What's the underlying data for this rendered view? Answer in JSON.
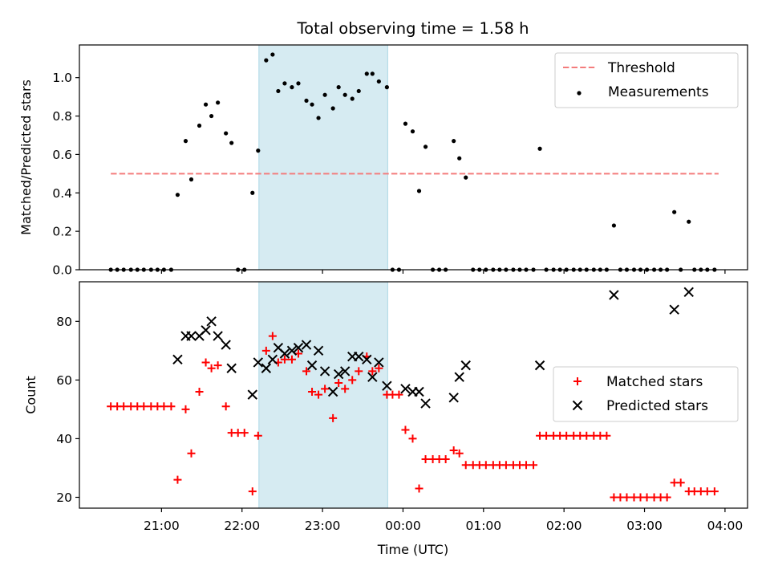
{
  "chart_data": {
    "title": "Total observing time = 1.58 h",
    "xlabel": "Time (UTC)",
    "x_ticks": [
      "21:00",
      "22:00",
      "23:00",
      "00:00",
      "01:00",
      "02:00",
      "03:00",
      "04:00"
    ],
    "x_range_hours": [
      19.98,
      28.28
    ],
    "highlight_interval_hours": [
      22.21,
      23.81
    ],
    "colors": {
      "threshold": "#f47c7c",
      "measurements": "#000000",
      "matched": "#ff0000",
      "predicted": "#000000",
      "highlight": "#add8e6"
    },
    "panels": [
      {
        "type": "scatter",
        "ylabel": "Matched/Predicted stars",
        "ylim": [
          0,
          1.17
        ],
        "y_ticks": [
          "0.0",
          "0.2",
          "0.4",
          "0.6",
          "0.8",
          "1.0"
        ],
        "legend_position": "top-right",
        "series": [
          {
            "name": "Threshold",
            "style": "dashed-line",
            "points": [
              [
                20.37,
                0.5
              ],
              [
                27.92,
                0.5
              ]
            ]
          },
          {
            "name": "Measurements",
            "style": "dot",
            "points": [
              [
                20.37,
                0
              ],
              [
                20.45,
                0
              ],
              [
                20.53,
                0
              ],
              [
                20.62,
                0
              ],
              [
                20.7,
                0
              ],
              [
                20.78,
                0
              ],
              [
                20.87,
                0
              ],
              [
                20.95,
                0
              ],
              [
                21.03,
                0
              ],
              [
                21.12,
                0
              ],
              [
                21.2,
                0.39
              ],
              [
                21.3,
                0.67
              ],
              [
                21.37,
                0.47
              ],
              [
                21.47,
                0.75
              ],
              [
                21.55,
                0.86
              ],
              [
                21.62,
                0.8
              ],
              [
                21.7,
                0.87
              ],
              [
                21.8,
                0.71
              ],
              [
                21.87,
                0.66
              ],
              [
                21.95,
                0
              ],
              [
                22.03,
                0
              ],
              [
                22.13,
                0.4
              ],
              [
                22.2,
                0.62
              ],
              [
                22.3,
                1.09
              ],
              [
                22.38,
                1.12
              ],
              [
                22.45,
                0.93
              ],
              [
                22.53,
                0.97
              ],
              [
                22.62,
                0.95
              ],
              [
                22.7,
                0.97
              ],
              [
                22.8,
                0.88
              ],
              [
                22.87,
                0.86
              ],
              [
                22.95,
                0.79
              ],
              [
                23.03,
                0.91
              ],
              [
                23.13,
                0.84
              ],
              [
                23.2,
                0.95
              ],
              [
                23.28,
                0.91
              ],
              [
                23.37,
                0.89
              ],
              [
                23.45,
                0.93
              ],
              [
                23.55,
                1.02
              ],
              [
                23.62,
                1.02
              ],
              [
                23.7,
                0.98
              ],
              [
                23.8,
                0.95
              ],
              [
                23.87,
                0
              ],
              [
                23.95,
                0
              ],
              [
                24.03,
                0.76
              ],
              [
                24.12,
                0.72
              ],
              [
                24.2,
                0.41
              ],
              [
                24.28,
                0.64
              ],
              [
                24.37,
                0
              ],
              [
                24.45,
                0
              ],
              [
                24.53,
                0
              ],
              [
                24.63,
                0.67
              ],
              [
                24.7,
                0.58
              ],
              [
                24.78,
                0.48
              ],
              [
                24.87,
                0
              ],
              [
                24.95,
                0
              ],
              [
                25.03,
                0
              ],
              [
                25.12,
                0
              ],
              [
                25.2,
                0
              ],
              [
                25.28,
                0
              ],
              [
                25.37,
                0
              ],
              [
                25.45,
                0
              ],
              [
                25.53,
                0
              ],
              [
                25.62,
                0
              ],
              [
                25.7,
                0.63
              ],
              [
                25.78,
                0
              ],
              [
                25.87,
                0
              ],
              [
                25.95,
                0
              ],
              [
                26.03,
                0
              ],
              [
                26.12,
                0
              ],
              [
                26.2,
                0
              ],
              [
                26.28,
                0
              ],
              [
                26.37,
                0
              ],
              [
                26.45,
                0
              ],
              [
                26.53,
                0
              ],
              [
                26.62,
                0.23
              ],
              [
                26.7,
                0
              ],
              [
                26.78,
                0
              ],
              [
                26.87,
                0
              ],
              [
                26.95,
                0
              ],
              [
                27.03,
                0
              ],
              [
                27.12,
                0
              ],
              [
                27.2,
                0
              ],
              [
                27.28,
                0
              ],
              [
                27.37,
                0.3
              ],
              [
                27.45,
                0
              ],
              [
                27.55,
                0.25
              ],
              [
                27.62,
                0
              ],
              [
                27.7,
                0
              ],
              [
                27.78,
                0
              ],
              [
                27.87,
                0
              ]
            ]
          }
        ]
      },
      {
        "type": "scatter",
        "ylabel": "Count",
        "ylim": [
          16.3,
          93.5
        ],
        "y_ticks": [
          "20",
          "40",
          "60",
          "80"
        ],
        "legend_position": "center-right",
        "series": [
          {
            "name": "Matched stars",
            "style": "plus",
            "points": [
              [
                20.37,
                51
              ],
              [
                20.45,
                51
              ],
              [
                20.53,
                51
              ],
              [
                20.62,
                51
              ],
              [
                20.7,
                51
              ],
              [
                20.78,
                51
              ],
              [
                20.87,
                51
              ],
              [
                20.95,
                51
              ],
              [
                21.03,
                51
              ],
              [
                21.12,
                51
              ],
              [
                21.2,
                26
              ],
              [
                21.3,
                50
              ],
              [
                21.37,
                35
              ],
              [
                21.47,
                56
              ],
              [
                21.55,
                66
              ],
              [
                21.62,
                64
              ],
              [
                21.7,
                65
              ],
              [
                21.8,
                51
              ],
              [
                21.87,
                42
              ],
              [
                21.95,
                42
              ],
              [
                22.03,
                42
              ],
              [
                22.13,
                22
              ],
              [
                22.2,
                41
              ],
              [
                22.3,
                70
              ],
              [
                22.38,
                75
              ],
              [
                22.45,
                66
              ],
              [
                22.53,
                67
              ],
              [
                22.62,
                67
              ],
              [
                22.7,
                69
              ],
              [
                22.8,
                63
              ],
              [
                22.87,
                56
              ],
              [
                22.95,
                55
              ],
              [
                23.03,
                57
              ],
              [
                23.13,
                47
              ],
              [
                23.2,
                59
              ],
              [
                23.28,
                57
              ],
              [
                23.37,
                60
              ],
              [
                23.45,
                63
              ],
              [
                23.55,
                68
              ],
              [
                23.62,
                63
              ],
              [
                23.7,
                64
              ],
              [
                23.8,
                55
              ],
              [
                23.87,
                55
              ],
              [
                23.95,
                55
              ],
              [
                24.03,
                43
              ],
              [
                24.12,
                40
              ],
              [
                24.2,
                23
              ],
              [
                24.28,
                33
              ],
              [
                24.37,
                33
              ],
              [
                24.45,
                33
              ],
              [
                24.53,
                33
              ],
              [
                24.63,
                36
              ],
              [
                24.7,
                35
              ],
              [
                24.78,
                31
              ],
              [
                24.87,
                31
              ],
              [
                24.95,
                31
              ],
              [
                25.03,
                31
              ],
              [
                25.12,
                31
              ],
              [
                25.2,
                31
              ],
              [
                25.28,
                31
              ],
              [
                25.37,
                31
              ],
              [
                25.45,
                31
              ],
              [
                25.53,
                31
              ],
              [
                25.62,
                31
              ],
              [
                25.7,
                41
              ],
              [
                25.78,
                41
              ],
              [
                25.87,
                41
              ],
              [
                25.95,
                41
              ],
              [
                26.03,
                41
              ],
              [
                26.12,
                41
              ],
              [
                26.2,
                41
              ],
              [
                26.28,
                41
              ],
              [
                26.37,
                41
              ],
              [
                26.45,
                41
              ],
              [
                26.53,
                41
              ],
              [
                26.62,
                20
              ],
              [
                26.7,
                20
              ],
              [
                26.78,
                20
              ],
              [
                26.87,
                20
              ],
              [
                26.95,
                20
              ],
              [
                27.03,
                20
              ],
              [
                27.12,
                20
              ],
              [
                27.2,
                20
              ],
              [
                27.28,
                20
              ],
              [
                27.37,
                25
              ],
              [
                27.45,
                25
              ],
              [
                27.55,
                22
              ],
              [
                27.62,
                22
              ],
              [
                27.7,
                22
              ],
              [
                27.78,
                22
              ],
              [
                27.87,
                22
              ]
            ]
          },
          {
            "name": "Predicted stars",
            "style": "cross",
            "points": [
              [
                21.2,
                67
              ],
              [
                21.3,
                75
              ],
              [
                21.37,
                75
              ],
              [
                21.47,
                75
              ],
              [
                21.55,
                77
              ],
              [
                21.62,
                80
              ],
              [
                21.7,
                75
              ],
              [
                21.8,
                72
              ],
              [
                21.87,
                64
              ],
              [
                22.13,
                55
              ],
              [
                22.2,
                66
              ],
              [
                22.3,
                64
              ],
              [
                22.38,
                67
              ],
              [
                22.45,
                71
              ],
              [
                22.53,
                69
              ],
              [
                22.62,
                70
              ],
              [
                22.7,
                71
              ],
              [
                22.8,
                72
              ],
              [
                22.87,
                65
              ],
              [
                22.95,
                70
              ],
              [
                23.03,
                63
              ],
              [
                23.13,
                56
              ],
              [
                23.2,
                62
              ],
              [
                23.28,
                63
              ],
              [
                23.37,
                68
              ],
              [
                23.45,
                68
              ],
              [
                23.55,
                67
              ],
              [
                23.62,
                61
              ],
              [
                23.7,
                66
              ],
              [
                23.8,
                58
              ],
              [
                24.03,
                57
              ],
              [
                24.12,
                56
              ],
              [
                24.2,
                56
              ],
              [
                24.28,
                52
              ],
              [
                24.63,
                54
              ],
              [
                24.7,
                61
              ],
              [
                24.78,
                65
              ],
              [
                25.7,
                65
              ],
              [
                26.62,
                89
              ],
              [
                27.37,
                84
              ],
              [
                27.55,
                90
              ]
            ]
          }
        ]
      }
    ]
  }
}
